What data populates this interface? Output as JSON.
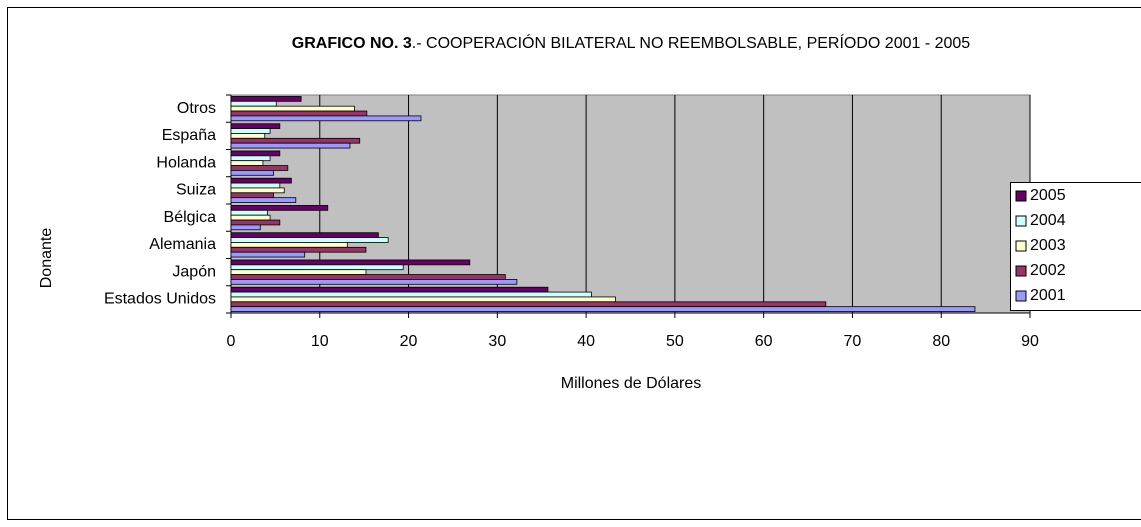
{
  "chart_data": {
    "type": "bar",
    "orientation": "horizontal",
    "title": [
      "GRAFICO NO. 3",
      ".- COOPERACIÓN BILATERAL NO REEMBOLSABLE, PERÍODO 2001 - 2005"
    ],
    "x_label": "Millones de Dólares",
    "y_label": "Donante",
    "categories": [
      "Estados Unidos",
      "Japón",
      "Alemania",
      "Bélgica",
      "Suiza",
      "Holanda",
      "España",
      "Otros"
    ],
    "series": [
      {
        "name": "2005",
        "color": "#660066",
        "values": [
          35.7,
          26.9,
          16.6,
          10.9,
          6.8,
          5.5,
          5.5,
          7.9
        ]
      },
      {
        "name": "2004",
        "color": "#ccffff",
        "values": [
          40.6,
          19.4,
          17.7,
          4.1,
          5.5,
          4.4,
          4.4,
          5.1
        ]
      },
      {
        "name": "2003",
        "color": "#ffffcc",
        "values": [
          43.3,
          15.2,
          13.1,
          4.4,
          6.0,
          3.6,
          3.8,
          13.9
        ]
      },
      {
        "name": "2002",
        "color": "#993366",
        "values": [
          67.0,
          30.9,
          15.2,
          5.5,
          4.8,
          6.4,
          14.5,
          15.3
        ]
      },
      {
        "name": "2001",
        "color": "#9999ff",
        "values": [
          83.8,
          32.2,
          8.3,
          3.3,
          7.3,
          4.8,
          13.4,
          21.4
        ]
      }
    ],
    "xlim": [
      0,
      90
    ],
    "xticks": [
      0,
      10,
      20,
      30,
      40,
      50,
      60,
      70,
      80,
      90
    ],
    "grid": true,
    "plot_background": "#c0c0c0",
    "legend": "right"
  }
}
